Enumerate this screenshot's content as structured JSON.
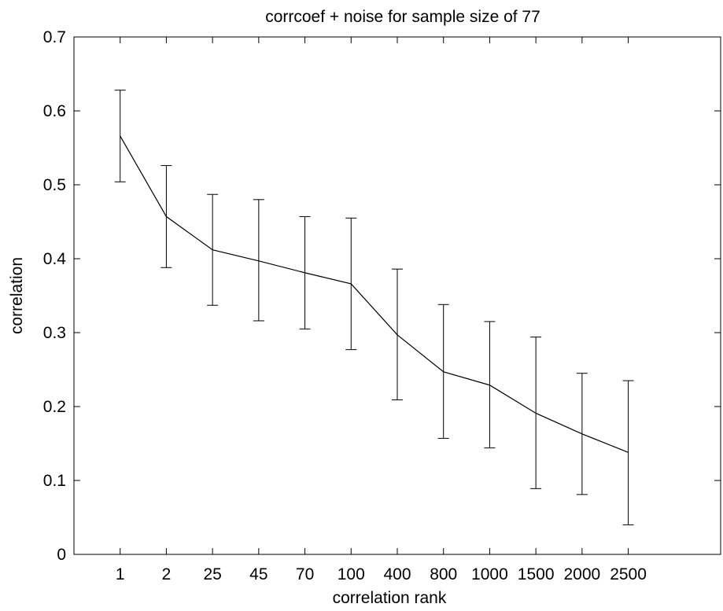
{
  "chart_data": {
    "type": "line",
    "title": "corrcoef + noise for sample size of 77",
    "xlabel": "correlation rank",
    "ylabel": "correlation",
    "categories": [
      "1",
      "2",
      "25",
      "45",
      "70",
      "100",
      "400",
      "800",
      "1000",
      "1500",
      "2000",
      "2500"
    ],
    "values": [
      0.566,
      0.457,
      0.412,
      0.397,
      0.381,
      0.366,
      0.297,
      0.247,
      0.229,
      0.191,
      0.163,
      0.138
    ],
    "error_upper": [
      0.628,
      0.526,
      0.487,
      0.48,
      0.457,
      0.455,
      0.386,
      0.338,
      0.315,
      0.294,
      0.245,
      0.235
    ],
    "error_lower": [
      0.504,
      0.388,
      0.337,
      0.316,
      0.305,
      0.277,
      0.209,
      0.157,
      0.144,
      0.089,
      0.081,
      0.04
    ],
    "ylim": [
      0,
      0.7
    ],
    "yticks": [
      "0",
      "0.1",
      "0.2",
      "0.3",
      "0.4",
      "0.5",
      "0.6",
      "0.7"
    ],
    "xlim": [
      0,
      14
    ],
    "grid": false,
    "line_color": "#000000"
  }
}
